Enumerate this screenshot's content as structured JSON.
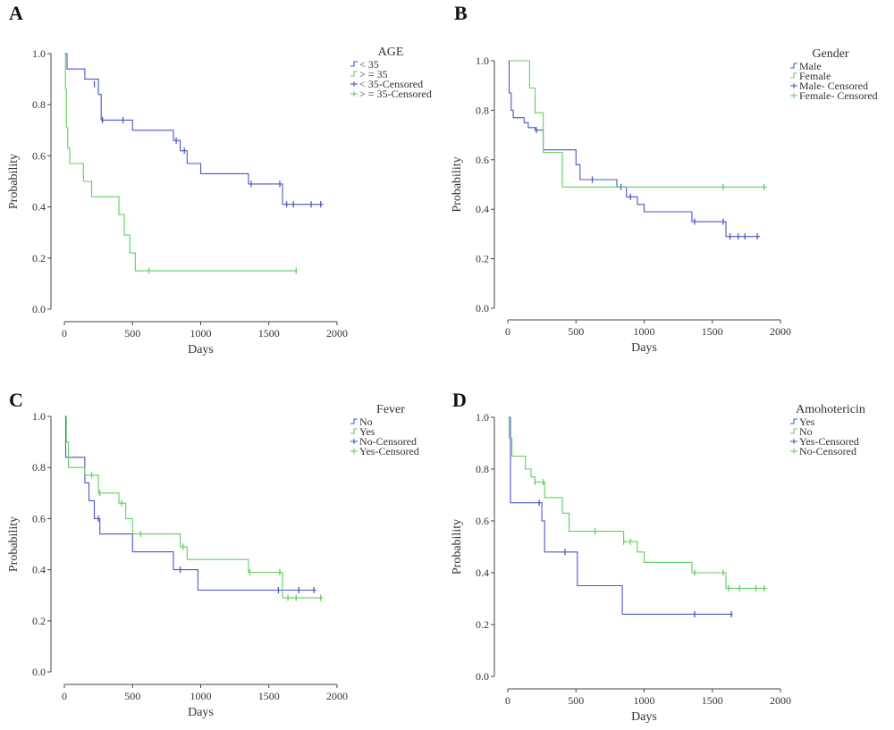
{
  "chart_data": [
    {
      "panel": "A",
      "type": "line",
      "xlabel": "Days",
      "ylabel": "Probability",
      "xlim": [
        0,
        2000
      ],
      "ylim": [
        0,
        1
      ],
      "x_ticks": [
        "0",
        "500",
        "1000",
        "1500",
        "2000"
      ],
      "y_ticks": [
        "0.0",
        "0.2",
        "0.4",
        "0.6",
        "0.8",
        "1.0"
      ],
      "legend_title": "AGE",
      "legend_entries": [
        "< 35",
        "> = 35",
        "< 35-Censored",
        "> = 35-Censored"
      ],
      "series": [
        {
          "name": "< 35",
          "color": "#4a56c4",
          "steps": [
            [
              0,
              1.0
            ],
            [
              20,
              0.94
            ],
            [
              150,
              0.9
            ],
            [
              250,
              0.84
            ],
            [
              270,
              0.74
            ],
            [
              500,
              0.7
            ],
            [
              800,
              0.66
            ],
            [
              850,
              0.62
            ],
            [
              900,
              0.57
            ],
            [
              1000,
              0.53
            ],
            [
              1350,
              0.49
            ],
            [
              1600,
              0.41
            ],
            [
              1900,
              0.41
            ]
          ],
          "censored": [
            [
              220,
              0.88
            ],
            [
              280,
              0.74
            ],
            [
              430,
              0.74
            ],
            [
              820,
              0.66
            ],
            [
              880,
              0.62
            ],
            [
              1370,
              0.49
            ],
            [
              1580,
              0.49
            ],
            [
              1630,
              0.41
            ],
            [
              1680,
              0.41
            ],
            [
              1810,
              0.41
            ],
            [
              1880,
              0.41
            ]
          ]
        },
        {
          "name": "> = 35",
          "color": "#5fcf5f",
          "steps": [
            [
              0,
              1.0
            ],
            [
              8,
              0.86
            ],
            [
              15,
              0.71
            ],
            [
              25,
              0.63
            ],
            [
              40,
              0.57
            ],
            [
              140,
              0.5
            ],
            [
              200,
              0.44
            ],
            [
              400,
              0.37
            ],
            [
              440,
              0.29
            ],
            [
              480,
              0.22
            ],
            [
              520,
              0.15
            ],
            [
              1700,
              0.15
            ]
          ],
          "censored": [
            [
              620,
              0.15
            ],
            [
              1700,
              0.15
            ]
          ]
        }
      ]
    },
    {
      "panel": "B",
      "type": "line",
      "xlabel": "Days",
      "ylabel": "Probability",
      "xlim": [
        0,
        2000
      ],
      "ylim": [
        0,
        1
      ],
      "x_ticks": [
        "0",
        "500",
        "1000",
        "1500",
        "2000"
      ],
      "y_ticks": [
        "0.0",
        "0.2",
        "0.4",
        "0.6",
        "0.8",
        "1.0"
      ],
      "legend_title": "Gender",
      "legend_entries": [
        "Male",
        "Female",
        "Male- Censored",
        "Female- Censored"
      ],
      "series": [
        {
          "name": "Male",
          "color": "#4a56c4",
          "steps": [
            [
              0,
              1.0
            ],
            [
              10,
              0.87
            ],
            [
              25,
              0.8
            ],
            [
              40,
              0.77
            ],
            [
              120,
              0.75
            ],
            [
              150,
              0.73
            ],
            [
              200,
              0.72
            ],
            [
              260,
              0.64
            ],
            [
              500,
              0.58
            ],
            [
              530,
              0.52
            ],
            [
              800,
              0.49
            ],
            [
              870,
              0.45
            ],
            [
              950,
              0.42
            ],
            [
              1000,
              0.39
            ],
            [
              1350,
              0.35
            ],
            [
              1600,
              0.29
            ],
            [
              1850,
              0.29
            ]
          ],
          "censored": [
            [
              210,
              0.72
            ],
            [
              620,
              0.52
            ],
            [
              830,
              0.49
            ],
            [
              900,
              0.45
            ],
            [
              1370,
              0.35
            ],
            [
              1580,
              0.35
            ],
            [
              1630,
              0.29
            ],
            [
              1690,
              0.29
            ],
            [
              1740,
              0.29
            ],
            [
              1830,
              0.29
            ]
          ]
        },
        {
          "name": "Female",
          "color": "#5fcf5f",
          "steps": [
            [
              0,
              1.0
            ],
            [
              160,
              0.89
            ],
            [
              200,
              0.79
            ],
            [
              260,
              0.63
            ],
            [
              400,
              0.49
            ],
            [
              1900,
              0.49
            ]
          ],
          "censored": [
            [
              1580,
              0.49
            ],
            [
              1880,
              0.49
            ]
          ]
        }
      ]
    },
    {
      "panel": "C",
      "type": "line",
      "xlabel": "Days",
      "ylabel": "Probability",
      "xlim": [
        0,
        2000
      ],
      "ylim": [
        0,
        1
      ],
      "x_ticks": [
        "0",
        "500",
        "1000",
        "1500",
        "2000"
      ],
      "y_ticks": [
        "0.0",
        "0.2",
        "0.4",
        "0.6",
        "0.8",
        "1.0"
      ],
      "legend_title": "Fever",
      "legend_entries": [
        "No",
        "Yes",
        "No-Censored",
        "Yes-Censored"
      ],
      "series": [
        {
          "name": "No",
          "color": "#4a56c4",
          "steps": [
            [
              0,
              1.0
            ],
            [
              10,
              0.84
            ],
            [
              150,
              0.74
            ],
            [
              180,
              0.67
            ],
            [
              220,
              0.6
            ],
            [
              260,
              0.54
            ],
            [
              500,
              0.47
            ],
            [
              800,
              0.4
            ],
            [
              980,
              0.32
            ],
            [
              1850,
              0.32
            ]
          ],
          "censored": [
            [
              250,
              0.6
            ],
            [
              850,
              0.4
            ],
            [
              1570,
              0.32
            ],
            [
              1720,
              0.32
            ],
            [
              1830,
              0.32
            ]
          ]
        },
        {
          "name": "Yes",
          "color": "#5fcf5f",
          "steps": [
            [
              0,
              1.0
            ],
            [
              15,
              0.9
            ],
            [
              30,
              0.8
            ],
            [
              150,
              0.77
            ],
            [
              250,
              0.7
            ],
            [
              400,
              0.66
            ],
            [
              450,
              0.6
            ],
            [
              500,
              0.54
            ],
            [
              850,
              0.49
            ],
            [
              900,
              0.44
            ],
            [
              1350,
              0.39
            ],
            [
              1600,
              0.29
            ],
            [
              1900,
              0.29
            ]
          ],
          "censored": [
            [
              200,
              0.77
            ],
            [
              260,
              0.7
            ],
            [
              420,
              0.66
            ],
            [
              560,
              0.54
            ],
            [
              870,
              0.49
            ],
            [
              1360,
              0.39
            ],
            [
              1580,
              0.39
            ],
            [
              1640,
              0.29
            ],
            [
              1700,
              0.29
            ],
            [
              1880,
              0.29
            ]
          ]
        }
      ]
    },
    {
      "panel": "D",
      "type": "line",
      "xlabel": "Days",
      "ylabel": "Probability",
      "xlim": [
        0,
        2000
      ],
      "ylim": [
        0,
        1
      ],
      "x_ticks": [
        "0",
        "500",
        "1000",
        "1500",
        "2000"
      ],
      "y_ticks": [
        "0.0",
        "0.2",
        "0.4",
        "0.6",
        "0.8",
        "1.0"
      ],
      "legend_title": "Amohotericin",
      "legend_entries": [
        "Yes",
        "No",
        "Yes-Censored",
        "No-Censored"
      ],
      "series": [
        {
          "name": "Yes",
          "color": "#4a56c4",
          "steps": [
            [
              0,
              1.0
            ],
            [
              20,
              0.67
            ],
            [
              250,
              0.6
            ],
            [
              270,
              0.48
            ],
            [
              510,
              0.35
            ],
            [
              840,
              0.24
            ],
            [
              1650,
              0.24
            ]
          ],
          "censored": [
            [
              230,
              0.67
            ],
            [
              420,
              0.48
            ],
            [
              1370,
              0.24
            ],
            [
              1640,
              0.24
            ]
          ]
        },
        {
          "name": "No",
          "color": "#5fcf5f",
          "steps": [
            [
              0,
              1.0
            ],
            [
              10,
              0.92
            ],
            [
              30,
              0.85
            ],
            [
              130,
              0.8
            ],
            [
              170,
              0.77
            ],
            [
              200,
              0.75
            ],
            [
              270,
              0.69
            ],
            [
              400,
              0.63
            ],
            [
              450,
              0.56
            ],
            [
              850,
              0.52
            ],
            [
              950,
              0.48
            ],
            [
              1000,
              0.44
            ],
            [
              1350,
              0.4
            ],
            [
              1600,
              0.34
            ],
            [
              1900,
              0.34
            ]
          ],
          "censored": [
            [
              200,
              0.75
            ],
            [
              260,
              0.75
            ],
            [
              640,
              0.56
            ],
            [
              850,
              0.52
            ],
            [
              900,
              0.52
            ],
            [
              1370,
              0.4
            ],
            [
              1580,
              0.4
            ],
            [
              1620,
              0.34
            ],
            [
              1700,
              0.34
            ],
            [
              1820,
              0.34
            ],
            [
              1880,
              0.34
            ]
          ]
        }
      ]
    }
  ]
}
